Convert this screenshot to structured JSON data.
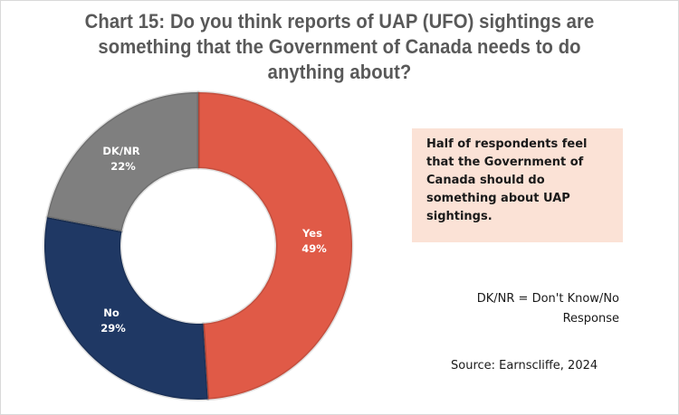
{
  "chart_data": {
    "type": "pie",
    "subtype": "donut",
    "title": "Chart 15: Do you think reports of UAP (UFO) sightings are something that the Government of Canada needs to do anything about?",
    "categories": [
      "Yes",
      "No",
      "DK/NR"
    ],
    "values": [
      49,
      29,
      22
    ],
    "unit": "%",
    "colors": [
      "#e05a47",
      "#1f3864",
      "#7f7f7f"
    ],
    "data_labels": [
      "Yes 49%",
      "No 29%",
      "DK/NR 22%"
    ],
    "start_angle_deg": 0,
    "direction": "clockwise",
    "legend": "none (labels on segments)",
    "annotations": [
      "Half of respondents feel that the Government of Canada should do something about UAP sightings.",
      "DK/NR = Don't Know/No Response",
      "Source: Earnscliffe, 2024"
    ]
  },
  "title": {
    "line1": "Chart 15: Do you think reports of UAP (UFO) sightings are",
    "line2": "something that the Government of Canada needs to do",
    "line3": "anything about?"
  },
  "segments": [
    {
      "name": "Yes",
      "pct": "49%",
      "color": "#e05a47"
    },
    {
      "name": "No",
      "pct": "29%",
      "color": "#1f3864"
    },
    {
      "name": "DK/NR",
      "pct": "22%",
      "color": "#7f7f7f"
    }
  ],
  "callout": {
    "text": "Half of respondents feel that the Government of Canada should do something about UAP sightings.",
    "background": "#fbe2d6"
  },
  "note": {
    "line1": "DK/NR = Don't Know/No",
    "line2": "Response"
  },
  "source": "Source: Earnscliffe, 2024"
}
